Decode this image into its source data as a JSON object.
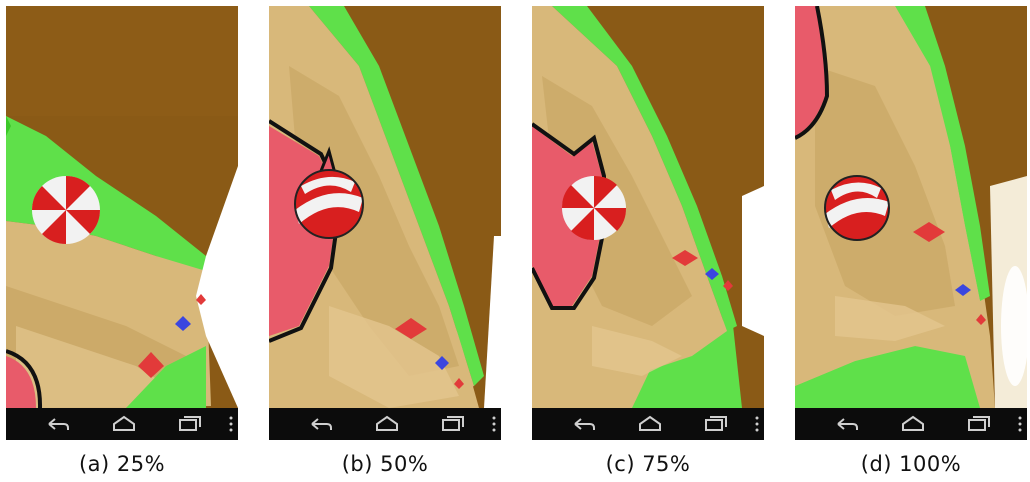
{
  "panels": [
    {
      "caption": "(a) 25%"
    },
    {
      "caption": "(b) 50%"
    },
    {
      "caption": "(c) 75%"
    },
    {
      "caption": "(d) 100%"
    }
  ],
  "navbar": {
    "icons": [
      "back-icon",
      "home-icon",
      "recent-apps-icon",
      "menu-icon"
    ],
    "color": "#cfcfcf"
  },
  "colors": {
    "background_earth": "#8a5a16",
    "sand": "#d8b87a",
    "grass": "#5fe04a",
    "ball_red": "#d81f1f",
    "ball_white": "#f2f2f2",
    "gem_red": "#e23a3a",
    "gem_blue": "#3b46e0"
  }
}
